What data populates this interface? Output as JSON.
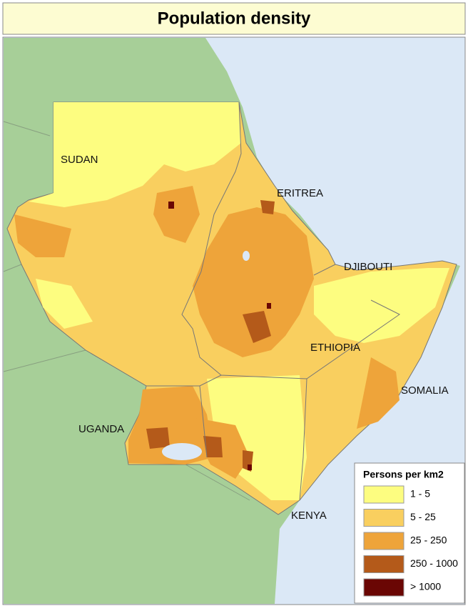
{
  "title": "Population density",
  "countries": [
    {
      "label": "SUDAN"
    },
    {
      "label": "ERITREA"
    },
    {
      "label": "DJIBOUTI"
    },
    {
      "label": "ETHIOPIA"
    },
    {
      "label": "SOMALIA"
    },
    {
      "label": "UGANDA"
    },
    {
      "label": "KENYA"
    }
  ],
  "legend": {
    "title": "Persons per km2",
    "classes": [
      {
        "label": "1 - 5",
        "color": "#fdfd80"
      },
      {
        "label": "5 - 25",
        "color": "#f9cf5f"
      },
      {
        "label": "25 - 250",
        "color": "#eea43a"
      },
      {
        "label": "250 - 1000",
        "color": "#b45a1a"
      },
      {
        "label": "> 1000",
        "color": "#6a0604"
      }
    ]
  }
}
